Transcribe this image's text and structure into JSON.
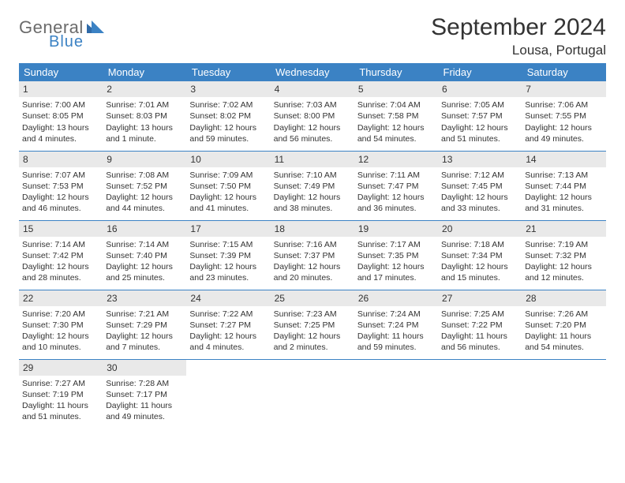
{
  "logo": {
    "word1": "General",
    "word2": "Blue"
  },
  "title": "September 2024",
  "location": "Lousa, Portugal",
  "colors": {
    "header_bg": "#3b82c4",
    "header_fg": "#ffffff",
    "daynum_bg": "#e9e9e9",
    "rule": "#3b82c4",
    "text": "#333333",
    "logo_gray": "#6b6b6b",
    "logo_blue": "#3b82c4"
  },
  "weekdays": [
    "Sunday",
    "Monday",
    "Tuesday",
    "Wednesday",
    "Thursday",
    "Friday",
    "Saturday"
  ],
  "grid": [
    [
      {
        "n": "1",
        "sr": "Sunrise: 7:00 AM",
        "ss": "Sunset: 8:05 PM",
        "d1": "Daylight: 13 hours",
        "d2": "and 4 minutes."
      },
      {
        "n": "2",
        "sr": "Sunrise: 7:01 AM",
        "ss": "Sunset: 8:03 PM",
        "d1": "Daylight: 13 hours",
        "d2": "and 1 minute."
      },
      {
        "n": "3",
        "sr": "Sunrise: 7:02 AM",
        "ss": "Sunset: 8:02 PM",
        "d1": "Daylight: 12 hours",
        "d2": "and 59 minutes."
      },
      {
        "n": "4",
        "sr": "Sunrise: 7:03 AM",
        "ss": "Sunset: 8:00 PM",
        "d1": "Daylight: 12 hours",
        "d2": "and 56 minutes."
      },
      {
        "n": "5",
        "sr": "Sunrise: 7:04 AM",
        "ss": "Sunset: 7:58 PM",
        "d1": "Daylight: 12 hours",
        "d2": "and 54 minutes."
      },
      {
        "n": "6",
        "sr": "Sunrise: 7:05 AM",
        "ss": "Sunset: 7:57 PM",
        "d1": "Daylight: 12 hours",
        "d2": "and 51 minutes."
      },
      {
        "n": "7",
        "sr": "Sunrise: 7:06 AM",
        "ss": "Sunset: 7:55 PM",
        "d1": "Daylight: 12 hours",
        "d2": "and 49 minutes."
      }
    ],
    [
      {
        "n": "8",
        "sr": "Sunrise: 7:07 AM",
        "ss": "Sunset: 7:53 PM",
        "d1": "Daylight: 12 hours",
        "d2": "and 46 minutes."
      },
      {
        "n": "9",
        "sr": "Sunrise: 7:08 AM",
        "ss": "Sunset: 7:52 PM",
        "d1": "Daylight: 12 hours",
        "d2": "and 44 minutes."
      },
      {
        "n": "10",
        "sr": "Sunrise: 7:09 AM",
        "ss": "Sunset: 7:50 PM",
        "d1": "Daylight: 12 hours",
        "d2": "and 41 minutes."
      },
      {
        "n": "11",
        "sr": "Sunrise: 7:10 AM",
        "ss": "Sunset: 7:49 PM",
        "d1": "Daylight: 12 hours",
        "d2": "and 38 minutes."
      },
      {
        "n": "12",
        "sr": "Sunrise: 7:11 AM",
        "ss": "Sunset: 7:47 PM",
        "d1": "Daylight: 12 hours",
        "d2": "and 36 minutes."
      },
      {
        "n": "13",
        "sr": "Sunrise: 7:12 AM",
        "ss": "Sunset: 7:45 PM",
        "d1": "Daylight: 12 hours",
        "d2": "and 33 minutes."
      },
      {
        "n": "14",
        "sr": "Sunrise: 7:13 AM",
        "ss": "Sunset: 7:44 PM",
        "d1": "Daylight: 12 hours",
        "d2": "and 31 minutes."
      }
    ],
    [
      {
        "n": "15",
        "sr": "Sunrise: 7:14 AM",
        "ss": "Sunset: 7:42 PM",
        "d1": "Daylight: 12 hours",
        "d2": "and 28 minutes."
      },
      {
        "n": "16",
        "sr": "Sunrise: 7:14 AM",
        "ss": "Sunset: 7:40 PM",
        "d1": "Daylight: 12 hours",
        "d2": "and 25 minutes."
      },
      {
        "n": "17",
        "sr": "Sunrise: 7:15 AM",
        "ss": "Sunset: 7:39 PM",
        "d1": "Daylight: 12 hours",
        "d2": "and 23 minutes."
      },
      {
        "n": "18",
        "sr": "Sunrise: 7:16 AM",
        "ss": "Sunset: 7:37 PM",
        "d1": "Daylight: 12 hours",
        "d2": "and 20 minutes."
      },
      {
        "n": "19",
        "sr": "Sunrise: 7:17 AM",
        "ss": "Sunset: 7:35 PM",
        "d1": "Daylight: 12 hours",
        "d2": "and 17 minutes."
      },
      {
        "n": "20",
        "sr": "Sunrise: 7:18 AM",
        "ss": "Sunset: 7:34 PM",
        "d1": "Daylight: 12 hours",
        "d2": "and 15 minutes."
      },
      {
        "n": "21",
        "sr": "Sunrise: 7:19 AM",
        "ss": "Sunset: 7:32 PM",
        "d1": "Daylight: 12 hours",
        "d2": "and 12 minutes."
      }
    ],
    [
      {
        "n": "22",
        "sr": "Sunrise: 7:20 AM",
        "ss": "Sunset: 7:30 PM",
        "d1": "Daylight: 12 hours",
        "d2": "and 10 minutes."
      },
      {
        "n": "23",
        "sr": "Sunrise: 7:21 AM",
        "ss": "Sunset: 7:29 PM",
        "d1": "Daylight: 12 hours",
        "d2": "and 7 minutes."
      },
      {
        "n": "24",
        "sr": "Sunrise: 7:22 AM",
        "ss": "Sunset: 7:27 PM",
        "d1": "Daylight: 12 hours",
        "d2": "and 4 minutes."
      },
      {
        "n": "25",
        "sr": "Sunrise: 7:23 AM",
        "ss": "Sunset: 7:25 PM",
        "d1": "Daylight: 12 hours",
        "d2": "and 2 minutes."
      },
      {
        "n": "26",
        "sr": "Sunrise: 7:24 AM",
        "ss": "Sunset: 7:24 PM",
        "d1": "Daylight: 11 hours",
        "d2": "and 59 minutes."
      },
      {
        "n": "27",
        "sr": "Sunrise: 7:25 AM",
        "ss": "Sunset: 7:22 PM",
        "d1": "Daylight: 11 hours",
        "d2": "and 56 minutes."
      },
      {
        "n": "28",
        "sr": "Sunrise: 7:26 AM",
        "ss": "Sunset: 7:20 PM",
        "d1": "Daylight: 11 hours",
        "d2": "and 54 minutes."
      }
    ],
    [
      {
        "n": "29",
        "sr": "Sunrise: 7:27 AM",
        "ss": "Sunset: 7:19 PM",
        "d1": "Daylight: 11 hours",
        "d2": "and 51 minutes."
      },
      {
        "n": "30",
        "sr": "Sunrise: 7:28 AM",
        "ss": "Sunset: 7:17 PM",
        "d1": "Daylight: 11 hours",
        "d2": "and 49 minutes."
      },
      null,
      null,
      null,
      null,
      null
    ]
  ]
}
